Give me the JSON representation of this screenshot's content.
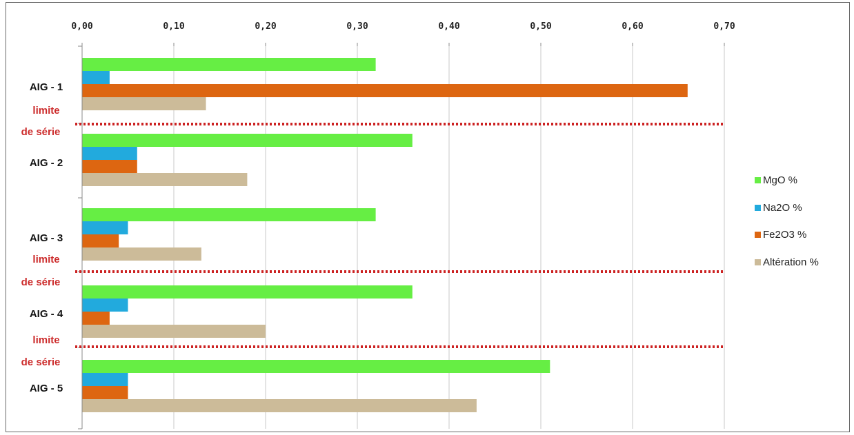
{
  "chart_data": {
    "type": "bar",
    "orientation": "horizontal",
    "title": "",
    "xlabel": "",
    "ylabel": "",
    "xlim": [
      0,
      0.7
    ],
    "x_ticks": [
      "0,00",
      "0,10",
      "0,20",
      "0,30",
      "0,40",
      "0,50",
      "0,60",
      "0,70"
    ],
    "x_tick_values": [
      0,
      0.1,
      0.2,
      0.3,
      0.4,
      0.5,
      0.6,
      0.7
    ],
    "x_axis_position": "top",
    "grid": true,
    "legend_position": "right",
    "categories": [
      "AIG - 1",
      "AIG - 2",
      "AIG - 3",
      "AIG - 4",
      "AIG - 5"
    ],
    "series": [
      {
        "name": "MgO %",
        "color": "#66ee44",
        "values": [
          0.32,
          0.36,
          0.32,
          0.36,
          0.51
        ]
      },
      {
        "name": "Na2O %",
        "color": "#22aadd",
        "values": [
          0.03,
          0.06,
          0.05,
          0.05,
          0.05
        ]
      },
      {
        "name": "Fe2O3 %",
        "color": "#dd6611",
        "values": [
          0.66,
          0.06,
          0.04,
          0.03,
          0.05
        ]
      },
      {
        "name": "Altération %",
        "color": "#ccbb99",
        "values": [
          0.135,
          0.18,
          0.13,
          0.2,
          0.43
        ]
      }
    ],
    "series_limits": [
      {
        "label_line1": "limite",
        "label_line2": "de série",
        "color": "#cc2222"
      },
      {
        "label_line1": "limite",
        "label_line2": "de série",
        "color": "#cc2222"
      },
      {
        "label_line1": "limite",
        "label_line2": "de série",
        "color": "#cc2222"
      }
    ]
  }
}
